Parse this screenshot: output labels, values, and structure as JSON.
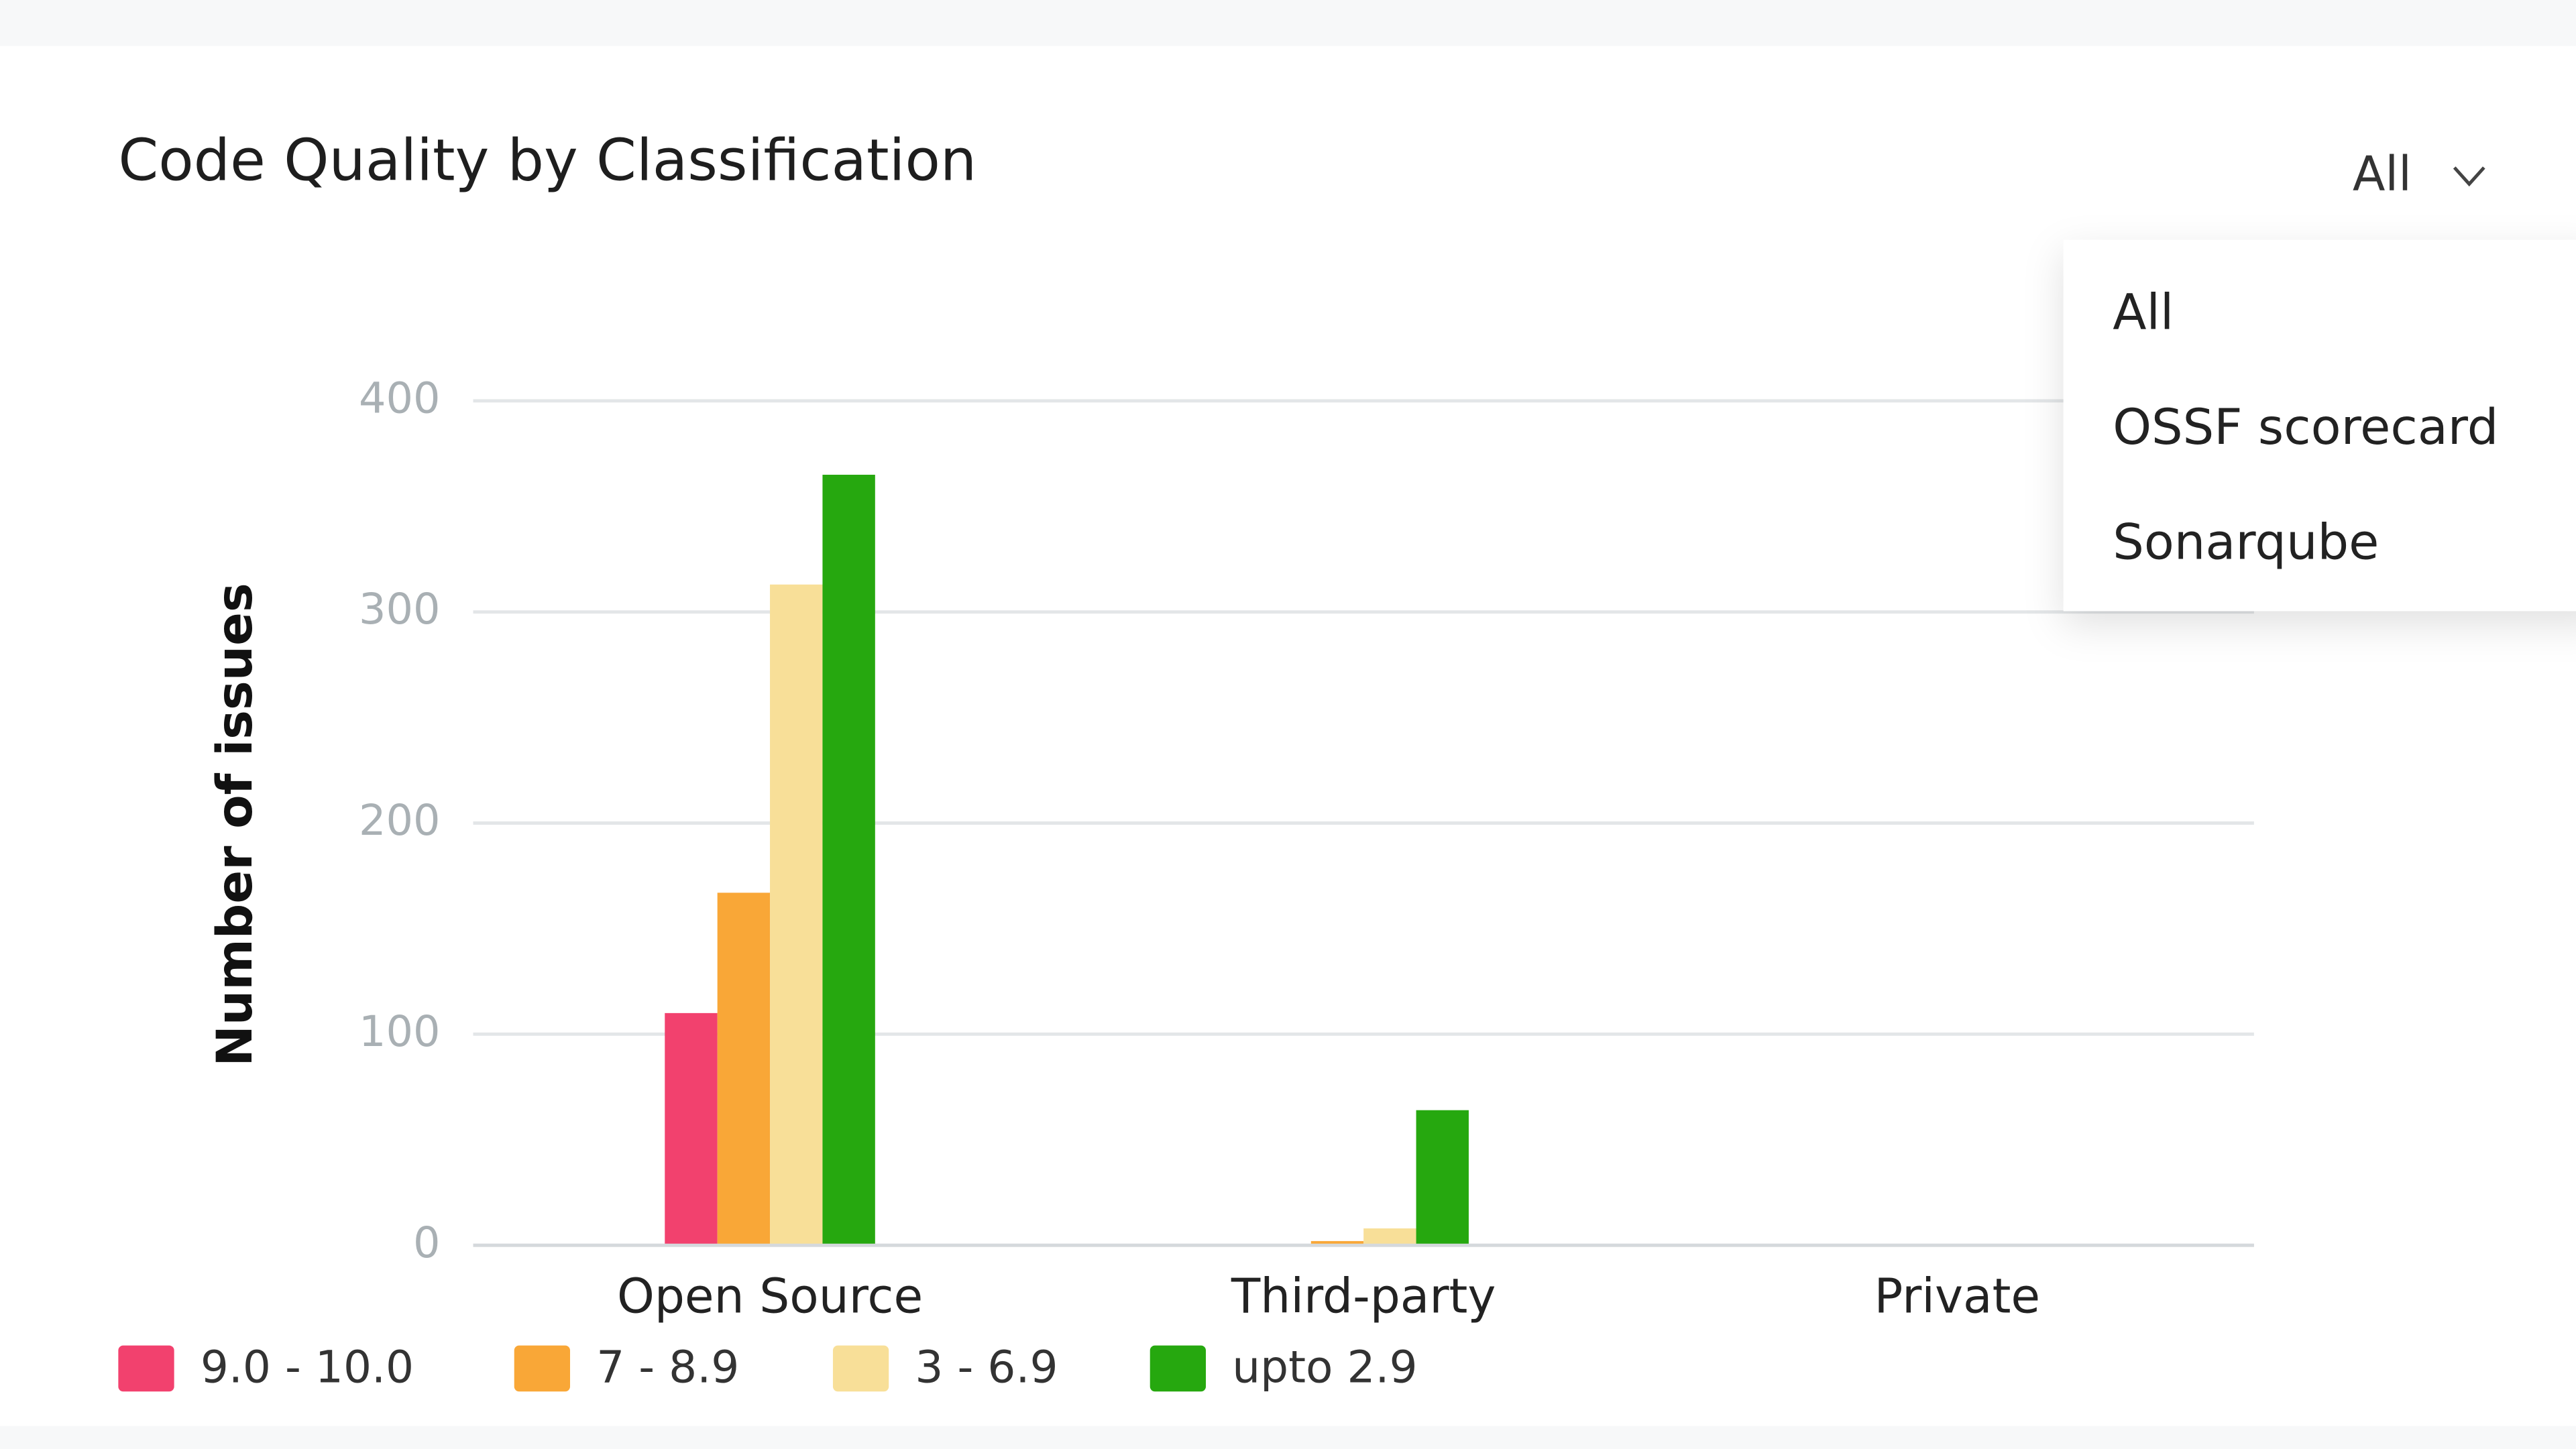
{
  "chart_data": {
    "type": "bar",
    "title": "Code Quality by Classification",
    "ylabel": "Number of issues",
    "categories": [
      "Open Source",
      "Third-party",
      "Private"
    ],
    "series": [
      {
        "name": "9.0 - 10.0",
        "color": "#f2416e",
        "values": [
          110,
          0,
          0
        ]
      },
      {
        "name": "7 - 8.9",
        "color": "#f9a737",
        "values": [
          167,
          2,
          0
        ]
      },
      {
        "name": "3 - 6.9",
        "color": "#f8df98",
        "values": [
          313,
          8,
          0
        ]
      },
      {
        "name": "upto 2.9",
        "color": "#26a80f",
        "values": [
          365,
          64,
          0
        ]
      }
    ],
    "ylim": [
      0,
      400
    ],
    "yticks": [
      0,
      100,
      200,
      300,
      400
    ],
    "grid": true
  },
  "dropdown": {
    "selected": "All",
    "options": [
      "All",
      "OSSF scorecard",
      "Sonarqube"
    ]
  }
}
